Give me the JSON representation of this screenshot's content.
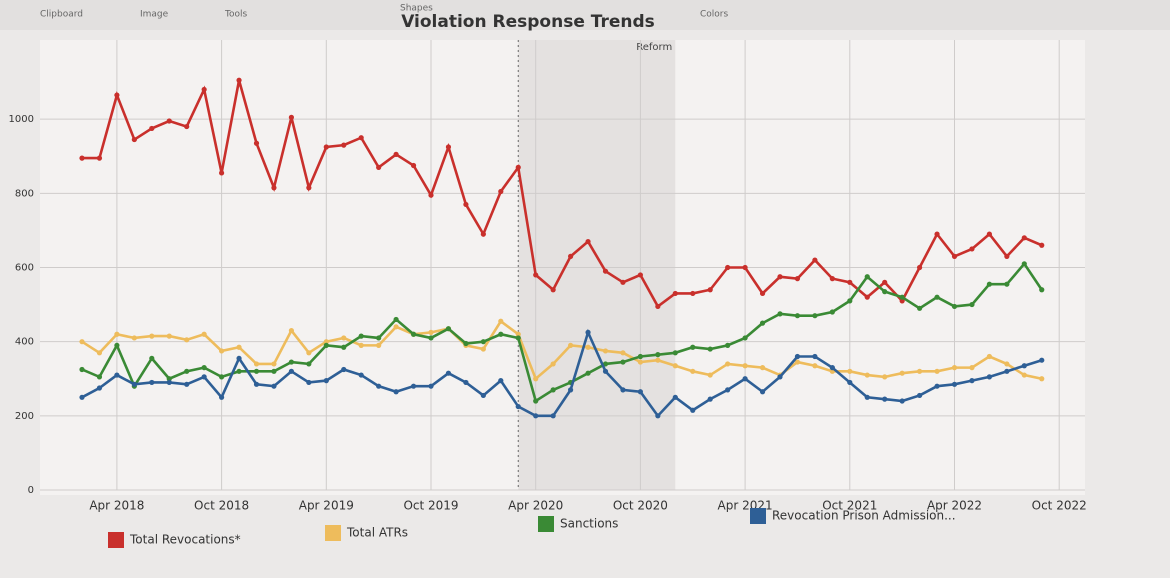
{
  "toolbar": [
    "Clipboard",
    "Image",
    "Tools",
    "Shapes",
    "Colors"
  ],
  "chart_data": {
    "type": "line",
    "title": "Violation Response Trends",
    "x": [
      "2018-02",
      "2018-03",
      "2018-04",
      "2018-05",
      "2018-06",
      "2018-07",
      "2018-08",
      "2018-09",
      "2018-10",
      "2018-11",
      "2018-12",
      "2019-01",
      "2019-02",
      "2019-03",
      "2019-04",
      "2019-05",
      "2019-06",
      "2019-07",
      "2019-08",
      "2019-09",
      "2019-10",
      "2019-11",
      "2019-12",
      "2020-01",
      "2020-02",
      "2020-03",
      "2020-04",
      "2020-05",
      "2020-06",
      "2020-07",
      "2020-08",
      "2020-09",
      "2020-10",
      "2020-11",
      "2020-12",
      "2021-01",
      "2021-02",
      "2021-03",
      "2021-04",
      "2021-05",
      "2021-06",
      "2021-07",
      "2021-08",
      "2021-09",
      "2021-10",
      "2021-11",
      "2021-12",
      "2022-01",
      "2022-02",
      "2022-03",
      "2022-04",
      "2022-05",
      "2022-06",
      "2022-07",
      "2022-08",
      "2022-09"
    ],
    "series": [
      {
        "name": "Total Revocations*",
        "color": "#c9302c",
        "values": [
          895,
          895,
          1065,
          945,
          975,
          995,
          980,
          1080,
          855,
          1105,
          935,
          815,
          1005,
          815,
          925,
          930,
          950,
          870,
          905,
          875,
          795,
          925,
          770,
          690,
          805,
          870,
          580,
          540,
          630,
          670,
          590,
          560,
          580,
          495,
          530,
          530,
          540,
          600,
          600,
          530,
          575,
          570,
          620,
          570,
          560,
          520,
          560,
          510,
          600,
          690,
          630,
          650,
          690,
          630,
          680,
          660
        ]
      },
      {
        "name": "Total ATRs",
        "color": "#eebc5c",
        "values": [
          400,
          370,
          420,
          410,
          415,
          415,
          405,
          420,
          375,
          385,
          340,
          340,
          430,
          370,
          400,
          410,
          390,
          390,
          440,
          420,
          425,
          435,
          390,
          380,
          455,
          420,
          300,
          340,
          390,
          385,
          375,
          370,
          345,
          350,
          335,
          320,
          310,
          340,
          335,
          330,
          310,
          345,
          335,
          320,
          320,
          310,
          305,
          315,
          320,
          320,
          330,
          330,
          360,
          340,
          310,
          300
        ]
      },
      {
        "name": "Sanctions",
        "color": "#3a8a35",
        "values": [
          325,
          305,
          390,
          280,
          355,
          300,
          320,
          330,
          305,
          320,
          320,
          320,
          345,
          340,
          390,
          385,
          415,
          410,
          460,
          420,
          410,
          435,
          395,
          400,
          420,
          410,
          240,
          270,
          290,
          315,
          340,
          345,
          360,
          365,
          370,
          385,
          380,
          390,
          410,
          450,
          475,
          470,
          470,
          480,
          510,
          575,
          535,
          520,
          490,
          520,
          495,
          500,
          555,
          555,
          610,
          540
        ]
      },
      {
        "name": "Revocation Prison Admission...",
        "color": "#2e5f96",
        "values": [
          250,
          275,
          310,
          285,
          290,
          290,
          285,
          305,
          250,
          355,
          285,
          280,
          320,
          290,
          295,
          325,
          310,
          280,
          265,
          280,
          280,
          315,
          290,
          255,
          295,
          225,
          200,
          200,
          270,
          425,
          320,
          270,
          265,
          200,
          250,
          215,
          245,
          270,
          300,
          265,
          305,
          360,
          360,
          330,
          290,
          250,
          245,
          240,
          255,
          280,
          285,
          295,
          305,
          320,
          335,
          350
        ]
      }
    ],
    "ylim": [
      0,
      1200
    ],
    "yticks": [
      0,
      200,
      400,
      600,
      800,
      1000
    ],
    "xticks": [
      {
        "value": "2018-04",
        "label": "Apr 2018"
      },
      {
        "value": "2018-10",
        "label": "Oct 2018"
      },
      {
        "value": "2019-04",
        "label": "Apr 2019"
      },
      {
        "value": "2019-10",
        "label": "Oct 2019"
      },
      {
        "value": "2020-04",
        "label": "Apr 2020"
      },
      {
        "value": "2020-10",
        "label": "Oct 2020"
      },
      {
        "value": "2021-04",
        "label": "Apr 2021"
      },
      {
        "value": "2021-10",
        "label": "Oct 2021"
      },
      {
        "value": "2022-04",
        "label": "Apr 2022"
      },
      {
        "value": "2022-10",
        "label": "Oct 2022"
      }
    ],
    "annotation": {
      "text": "Reform",
      "start": "2020-03",
      "end": "2020-12"
    },
    "grid": true
  }
}
